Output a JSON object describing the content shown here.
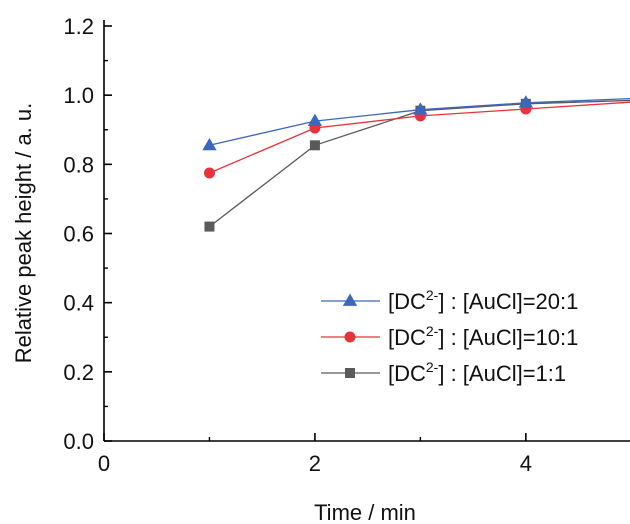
{
  "chart_data": {
    "type": "line",
    "title": "",
    "xlabel": "Time / min",
    "ylabel": "Relative peak height / a. u.",
    "xlim": [
      0,
      5
    ],
    "ylim": [
      0.0,
      1.2
    ],
    "xticks": [
      0,
      2,
      4
    ],
    "xtick_labels": [
      "0",
      "2",
      "4"
    ],
    "yticks": [
      0.0,
      0.2,
      0.4,
      0.6,
      0.8,
      1.0,
      1.2
    ],
    "ytick_labels": [
      "0.0",
      "0.2",
      "0.4",
      "0.6",
      "0.8",
      "1.0",
      "1.2"
    ],
    "grid": false,
    "legend_position": "bottom-right",
    "series": [
      {
        "name": "[DC2-] : [AuCl]=20:1",
        "legend_parts": [
          "[DC",
          "2-",
          "] : [AuCl]=20:1"
        ],
        "color": "#3d67bf",
        "marker": "triangle",
        "x": [
          1,
          2,
          3,
          4,
          5
        ],
        "y": [
          0.855,
          0.925,
          0.958,
          0.978,
          0.99
        ]
      },
      {
        "name": "[DC2-] : [AuCl]=10:1",
        "legend_parts": [
          "[DC",
          "2-",
          "] : [AuCl]=10:1"
        ],
        "color": "#e8333a",
        "marker": "circle",
        "x": [
          1,
          2,
          3,
          4,
          5
        ],
        "y": [
          0.775,
          0.905,
          0.94,
          0.96,
          0.98
        ]
      },
      {
        "name": "[DC2-] : [AuCl]=1:1",
        "legend_parts": [
          "[DC",
          "2-",
          "] : [AuCl]=1:1"
        ],
        "color": "#5a5a5a",
        "marker": "square",
        "x": [
          1,
          2,
          3,
          4,
          5
        ],
        "y": [
          0.62,
          0.855,
          0.955,
          0.975,
          0.985
        ]
      }
    ]
  }
}
